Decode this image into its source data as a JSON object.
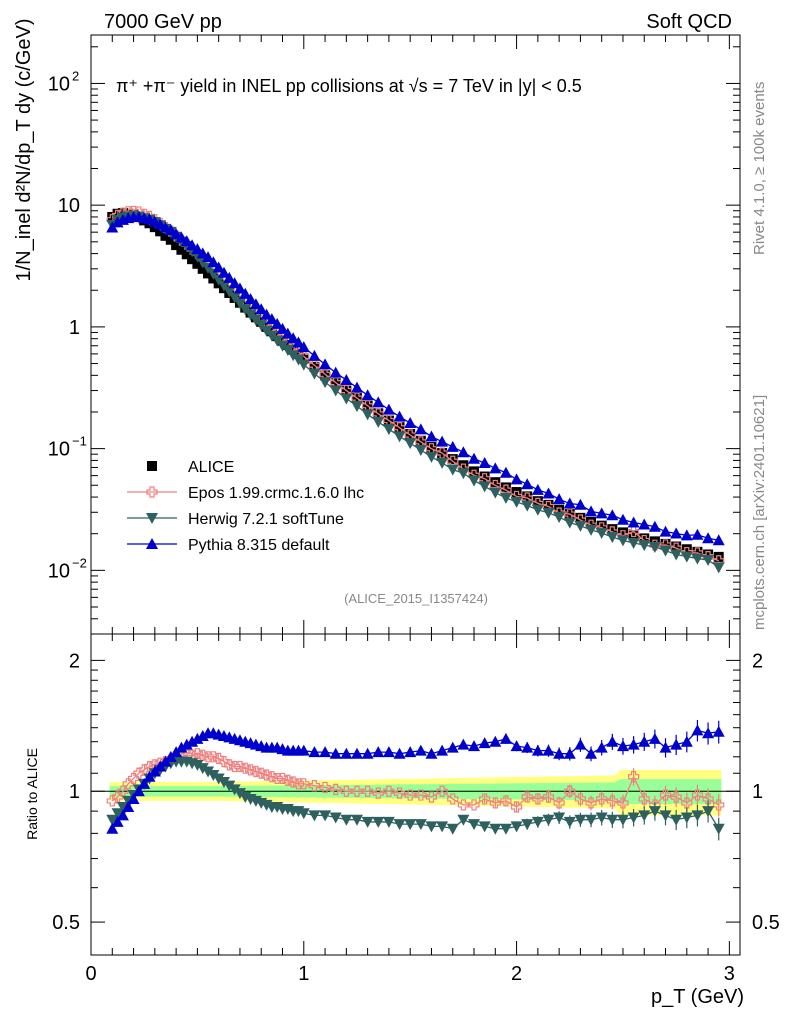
{
  "header": {
    "left": "7000 GeV pp",
    "right": "Soft QCD",
    "rivet": "Rivet 4.1.0, ≥ 100k events",
    "mcplots": "mcplots.cern.ch [arXiv:2401.10621]",
    "analysis": "(ALICE_2015_I1357424)",
    "main_title": "π⁺ +π⁻ yield in INEL pp collisions at √s = 7 TeV in |y| < 0.5",
    "ylabel_main": "1/N_inel d²N/dp_T dy (c/GeV)",
    "ylabel_ratio": "Ratio to ALICE",
    "xlabel": "p_T (GeV)"
  },
  "chart_data": [
    {
      "type": "scatter",
      "panel": "main",
      "title": "π⁺ +π⁻ yield in INEL pp collisions at √s = 7 TeV in |y| < 0.5",
      "xlabel": "p_T (GeV)",
      "ylabel": "1/N_inel d²N/dp_T dy (c/GeV)",
      "yscale": "log",
      "xlim": [
        0,
        3.05
      ],
      "ylim": [
        0.003,
        250
      ],
      "x_ticks": [
        "0",
        "1",
        "2",
        "3"
      ],
      "y_ticks": [
        {
          "value": 0.01,
          "base": "10",
          "exp": "−2"
        },
        {
          "value": 0.1,
          "base": "10",
          "exp": "−1"
        },
        {
          "value": 1,
          "base": "1",
          "exp": ""
        },
        {
          "value": 10,
          "base": "10",
          "exp": ""
        },
        {
          "value": 100,
          "base": "10",
          "exp": "2"
        }
      ],
      "legend_position": "bottom-left",
      "x": [
        0.1,
        0.125,
        0.15,
        0.175,
        0.2,
        0.225,
        0.25,
        0.275,
        0.3,
        0.325,
        0.35,
        0.375,
        0.4,
        0.425,
        0.45,
        0.475,
        0.5,
        0.525,
        0.55,
        0.575,
        0.6,
        0.625,
        0.65,
        0.675,
        0.7,
        0.725,
        0.75,
        0.775,
        0.8,
        0.825,
        0.85,
        0.875,
        0.9,
        0.925,
        0.95,
        0.975,
        1.0,
        1.05,
        1.1,
        1.15,
        1.2,
        1.25,
        1.3,
        1.35,
        1.4,
        1.45,
        1.5,
        1.55,
        1.6,
        1.65,
        1.7,
        1.75,
        1.8,
        1.85,
        1.9,
        1.95,
        2.0,
        2.05,
        2.1,
        2.15,
        2.2,
        2.25,
        2.3,
        2.35,
        2.4,
        2.45,
        2.5,
        2.55,
        2.6,
        2.65,
        2.7,
        2.75,
        2.8,
        2.85,
        2.9,
        2.95
      ],
      "series": [
        {
          "name": "ALICE",
          "color": "#000000",
          "marker": "square",
          "values": [
            8.0,
            8.5,
            8.6,
            8.5,
            8.3,
            8.0,
            7.5,
            7.1,
            6.6,
            6.1,
            5.6,
            5.2,
            4.7,
            4.3,
            3.95,
            3.6,
            3.3,
            3.0,
            2.75,
            2.5,
            2.28,
            2.08,
            1.9,
            1.73,
            1.58,
            1.44,
            1.31,
            1.2,
            1.1,
            1.0,
            0.92,
            0.84,
            0.77,
            0.71,
            0.65,
            0.6,
            0.55,
            0.47,
            0.4,
            0.345,
            0.3,
            0.26,
            0.225,
            0.195,
            0.17,
            0.15,
            0.132,
            0.116,
            0.103,
            0.092,
            0.082,
            0.073,
            0.065,
            0.059,
            0.053,
            0.048,
            0.044,
            0.0405,
            0.037,
            0.0345,
            0.0315,
            0.029,
            0.027,
            0.025,
            0.0233,
            0.0218,
            0.0205,
            0.0193,
            0.0183,
            0.0173,
            0.0165,
            0.0157,
            0.0149,
            0.0142,
            0.0135,
            0.0129
          ]
        },
        {
          "name": "Epos 1.99.crmc.1.6.0 lhc",
          "color": "#f08080",
          "marker": "open-cross",
          "ratio": [
            0.95,
            0.97,
            1.0,
            1.04,
            1.07,
            1.1,
            1.12,
            1.14,
            1.15,
            1.16,
            1.17,
            1.18,
            1.19,
            1.2,
            1.21,
            1.21,
            1.22,
            1.21,
            1.2,
            1.2,
            1.19,
            1.17,
            1.15,
            1.14,
            1.14,
            1.13,
            1.12,
            1.11,
            1.1,
            1.09,
            1.08,
            1.07,
            1.07,
            1.06,
            1.05,
            1.04,
            1.04,
            1.03,
            1.02,
            1.01,
            1.0,
            1.0,
            1.0,
            0.99,
            1.0,
            0.99,
            0.98,
            0.98,
            0.97,
            1.0,
            0.96,
            0.93,
            0.93,
            0.96,
            0.94,
            0.95,
            0.92,
            0.97,
            0.96,
            0.97,
            0.94,
            1.0,
            0.96,
            0.94,
            0.96,
            0.95,
            0.94,
            1.08,
            0.96,
            0.93,
            0.98,
            0.97,
            0.94,
            0.98,
            0.96,
            0.93
          ]
        },
        {
          "name": "Herwig 7.2.1 softTune",
          "color": "#2f6060",
          "marker": "triangle-down",
          "ratio": [
            0.86,
            0.89,
            0.92,
            0.95,
            0.98,
            1.01,
            1.04,
            1.07,
            1.1,
            1.12,
            1.14,
            1.16,
            1.17,
            1.17,
            1.17,
            1.16,
            1.15,
            1.13,
            1.11,
            1.09,
            1.07,
            1.05,
            1.03,
            1.01,
            0.99,
            0.97,
            0.96,
            0.95,
            0.94,
            0.93,
            0.92,
            0.92,
            0.91,
            0.91,
            0.9,
            0.9,
            0.89,
            0.88,
            0.88,
            0.87,
            0.86,
            0.86,
            0.85,
            0.85,
            0.85,
            0.84,
            0.84,
            0.84,
            0.83,
            0.83,
            0.82,
            0.86,
            0.84,
            0.83,
            0.82,
            0.82,
            0.83,
            0.84,
            0.85,
            0.86,
            0.87,
            0.85,
            0.86,
            0.86,
            0.87,
            0.86,
            0.86,
            0.87,
            0.88,
            0.9,
            0.88,
            0.86,
            0.87,
            0.88,
            0.9,
            0.82
          ]
        },
        {
          "name": "Pythia 8.315 default",
          "color": "#0000cc",
          "marker": "triangle-up",
          "ratio": [
            0.82,
            0.85,
            0.88,
            0.92,
            0.96,
            1.0,
            1.04,
            1.08,
            1.11,
            1.14,
            1.17,
            1.2,
            1.23,
            1.26,
            1.28,
            1.3,
            1.32,
            1.34,
            1.36,
            1.36,
            1.35,
            1.34,
            1.33,
            1.32,
            1.31,
            1.3,
            1.29,
            1.28,
            1.27,
            1.26,
            1.26,
            1.26,
            1.25,
            1.24,
            1.24,
            1.24,
            1.24,
            1.23,
            1.23,
            1.22,
            1.22,
            1.22,
            1.22,
            1.23,
            1.23,
            1.22,
            1.23,
            1.24,
            1.22,
            1.24,
            1.26,
            1.28,
            1.27,
            1.29,
            1.3,
            1.32,
            1.27,
            1.26,
            1.24,
            1.24,
            1.22,
            1.22,
            1.28,
            1.22,
            1.26,
            1.3,
            1.27,
            1.28,
            1.3,
            1.32,
            1.26,
            1.28,
            1.3,
            1.38,
            1.36,
            1.37
          ]
        }
      ]
    },
    {
      "type": "scatter",
      "panel": "ratio",
      "ylabel": "Ratio to ALICE",
      "xlabel": "p_T (GeV)",
      "yscale": "log",
      "xlim": [
        0,
        3.05
      ],
      "ylim": [
        0.42,
        2.3
      ],
      "y_ticks": [
        "0.5",
        "1",
        "2"
      ],
      "x_ticks": [
        "0",
        "1",
        "2",
        "3"
      ],
      "reference_line": 1,
      "bands": [
        {
          "name": "stat",
          "color": "#99ff99"
        },
        {
          "name": "syst",
          "color": "#ffff80"
        }
      ]
    }
  ]
}
